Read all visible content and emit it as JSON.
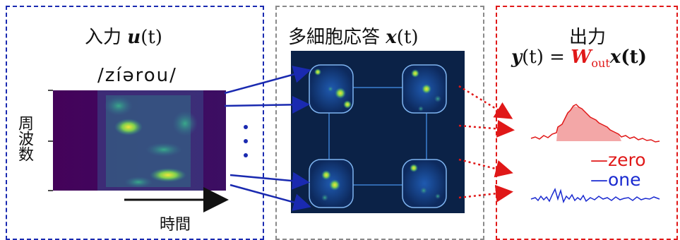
{
  "input_panel": {
    "title_prefix": "入力",
    "title_var": "u",
    "title_arg": "(t)",
    "phonetic": "/zíərou/",
    "y_axis_label": "周波数",
    "x_axis_label": "時間"
  },
  "response_panel": {
    "title_prefix": "多細胞応答",
    "title_var": "x",
    "title_arg": "(t)"
  },
  "output_panel": {
    "title": "出力",
    "eq_lhs_var": "y",
    "eq_lhs_arg": "(t)",
    "eq_equals": "=",
    "eq_w": "W",
    "eq_w_sub": "out",
    "eq_x": "x",
    "eq_x_arg": "(t)",
    "legend_zero": "zero",
    "legend_one": "one"
  },
  "colors": {
    "input_border": "#1a2ab0",
    "response_border": "#8a8a8a",
    "output_border": "#e01818",
    "zero_series": "#e01818",
    "one_series": "#1a2ad0",
    "weight_highlight": "#e01818"
  }
}
